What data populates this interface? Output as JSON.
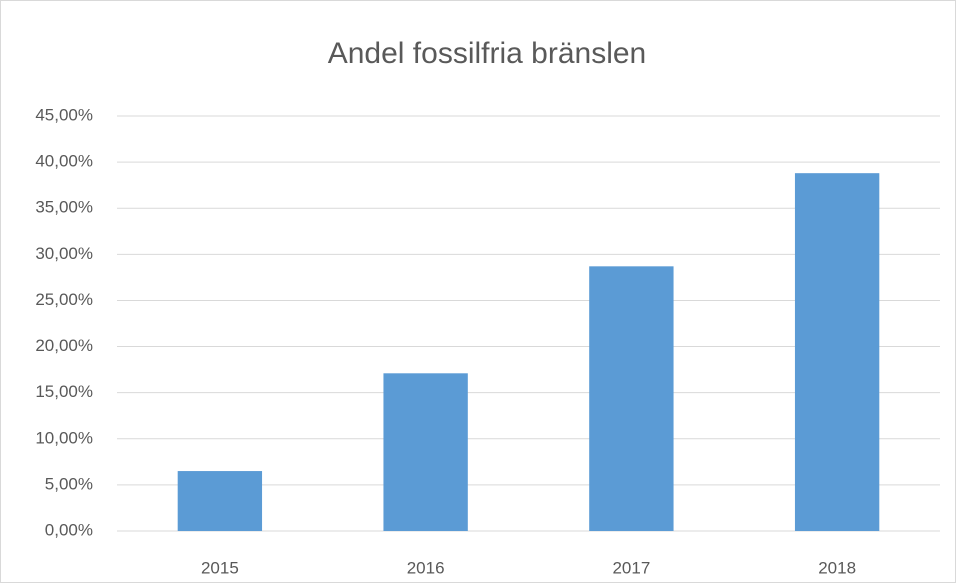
{
  "chart_data": {
    "type": "bar",
    "title": "Andel fossilfria bränslen",
    "categories": [
      "2015",
      "2016",
      "2017",
      "2018"
    ],
    "values": [
      6.5,
      17.1,
      28.7,
      38.8
    ],
    "color": "#5b9bd5",
    "ylim": [
      0,
      45
    ],
    "yticks": [
      {
        "value": 0,
        "label": "0,00%"
      },
      {
        "value": 5,
        "label": "5,00%"
      },
      {
        "value": 10,
        "label": "10,00%"
      },
      {
        "value": 15,
        "label": "15,00%"
      },
      {
        "value": 20,
        "label": "20,00%"
      },
      {
        "value": 25,
        "label": "25,00%"
      },
      {
        "value": 30,
        "label": "30,00%"
      },
      {
        "value": 35,
        "label": "35,00%"
      },
      {
        "value": 40,
        "label": "40,00%"
      },
      {
        "value": 45,
        "label": "45,00%"
      }
    ],
    "grid": true
  }
}
